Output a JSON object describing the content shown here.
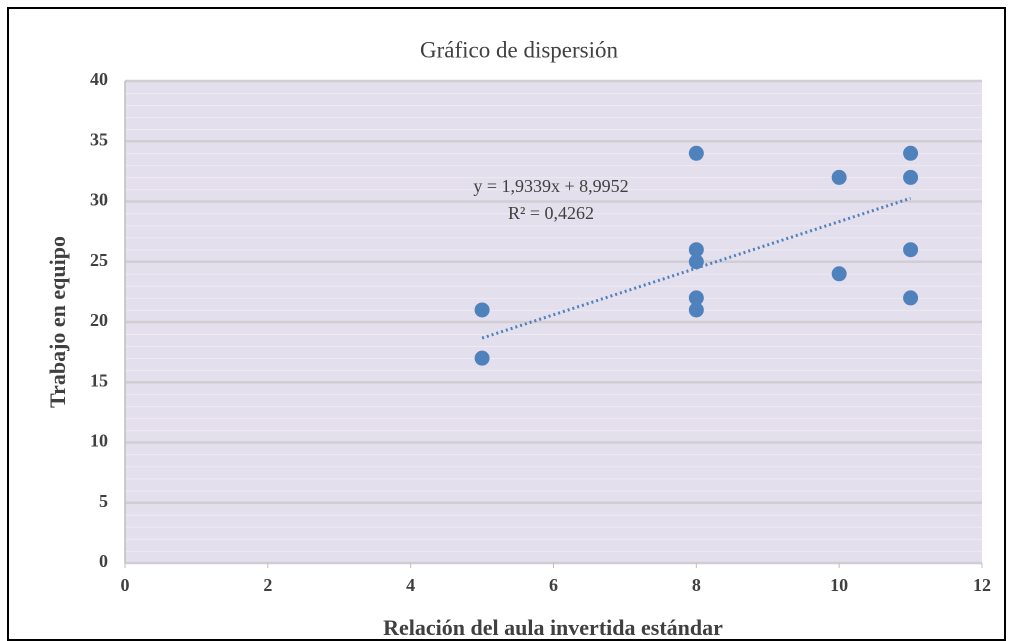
{
  "chart_data": {
    "type": "scatter",
    "title": "Gráfico de dispersión",
    "x_label": "Relación del aula invertida estándar",
    "y_label": "Trabajo en equipo",
    "series": [
      {
        "name": "Trabajo en equipo",
        "color": "#4f81bd",
        "x": [
          5,
          5,
          8,
          8,
          8,
          8,
          8,
          10,
          10,
          11,
          11,
          11,
          11
        ],
        "values": [
          21,
          17,
          34,
          26,
          25,
          22,
          21,
          32,
          24,
          34,
          32,
          26,
          22
        ]
      }
    ],
    "trendline": {
      "slope": 1.9339,
      "intercept": 8.9952,
      "color": "#4f81bd",
      "equation": "y = 1,9339x + 8,9952",
      "r_squared_label": "R² = 0,4262"
    },
    "xlim": [
      0,
      12
    ],
    "xticks": [
      0,
      2,
      4,
      6,
      8,
      10,
      12
    ],
    "ylim": [
      0,
      40
    ],
    "yticks": [
      0,
      5,
      10,
      15,
      20,
      25,
      30,
      35,
      40
    ],
    "grid": true
  }
}
